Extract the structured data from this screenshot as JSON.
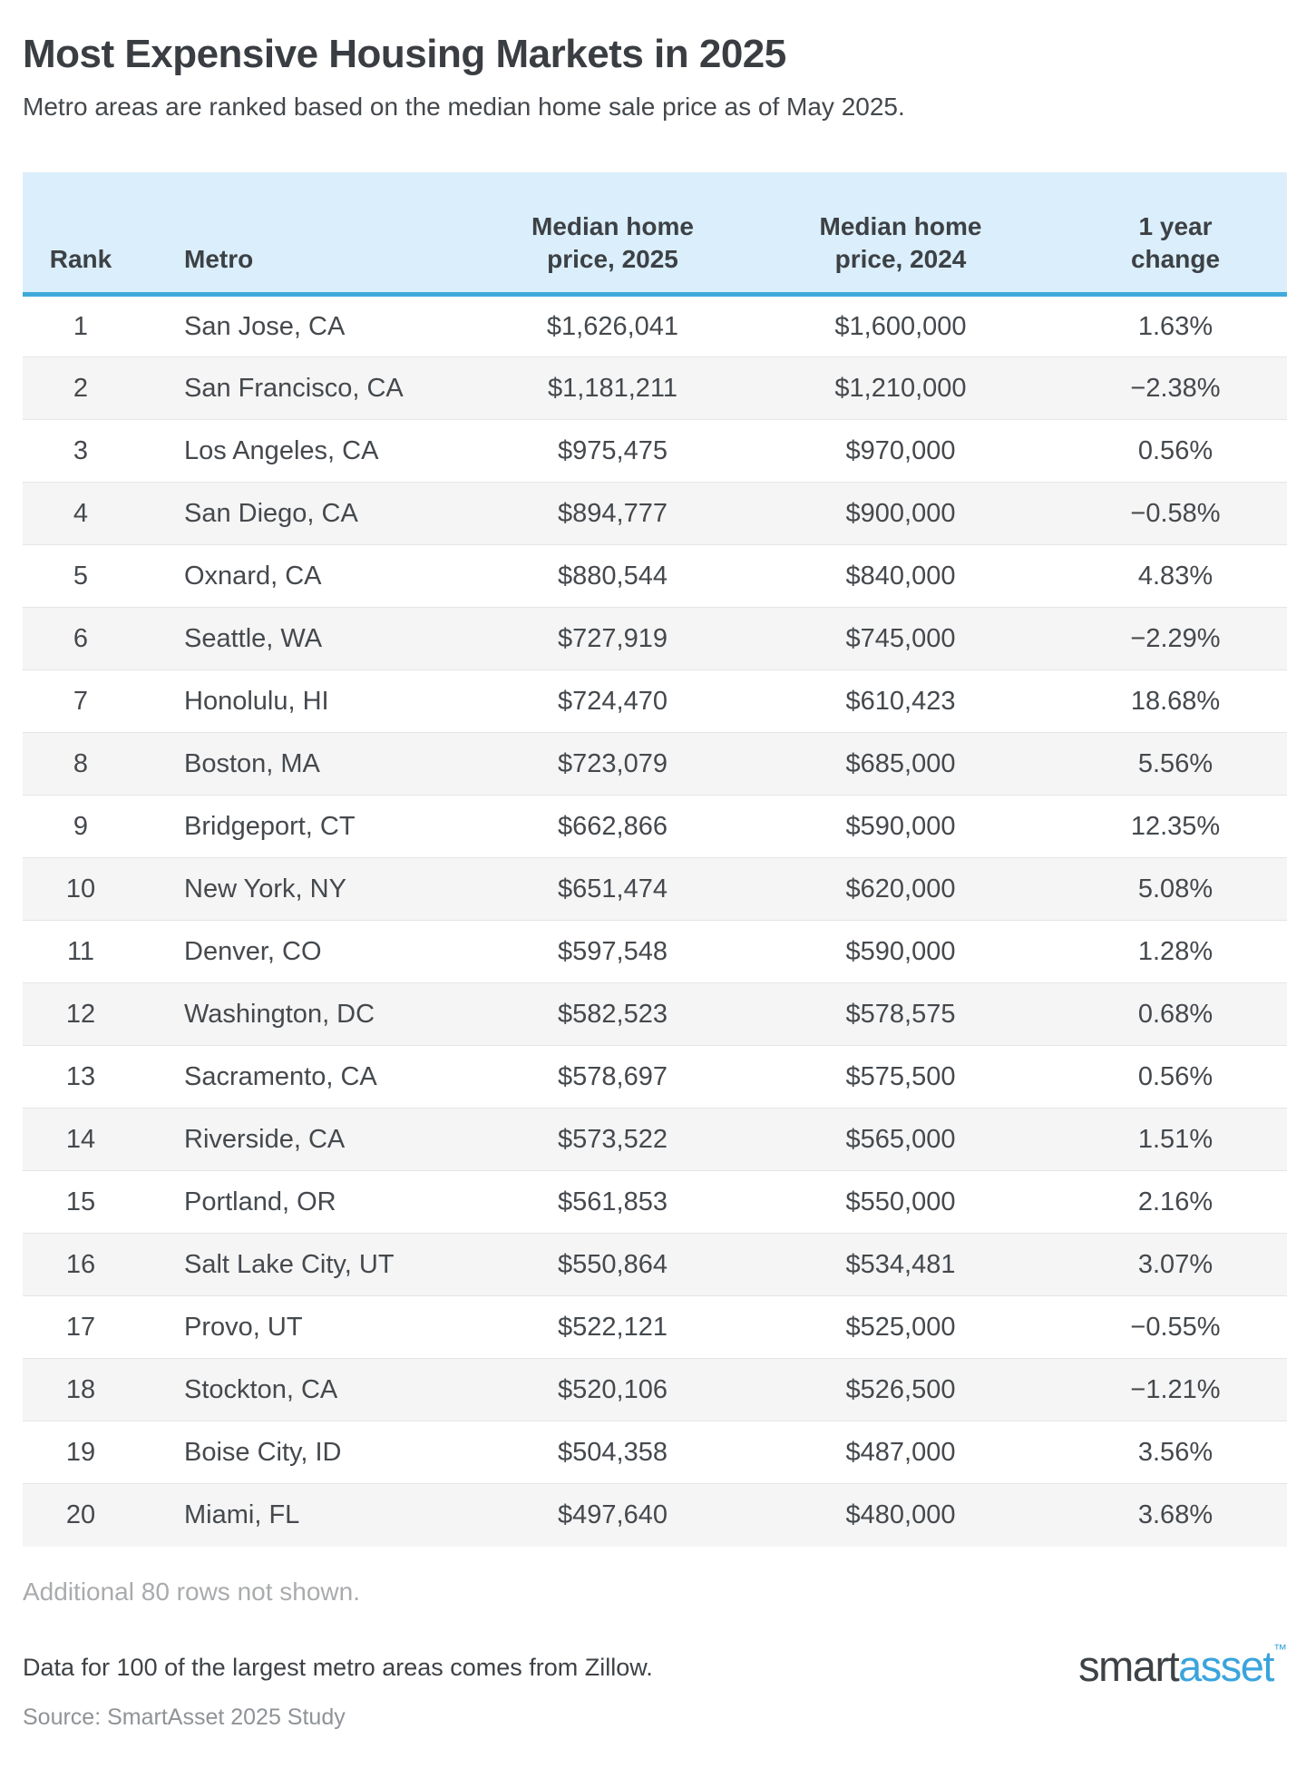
{
  "page": {
    "title": "Most Expensive Housing Markets in 2025",
    "subtitle": "Metro areas are ranked based on the median home sale price as of May 2025."
  },
  "table": {
    "columns": [
      {
        "key": "rank",
        "label": "Rank"
      },
      {
        "key": "metro",
        "label": "Metro"
      },
      {
        "key": "price2025",
        "label": "Median home\nprice, 2025"
      },
      {
        "key": "price2024",
        "label": "Median home\nprice, 2024"
      },
      {
        "key": "change",
        "label": "1 year\nchange"
      }
    ],
    "rows": [
      {
        "rank": "1",
        "metro": "San Jose, CA",
        "price2025": "$1,626,041",
        "price2024": "$1,600,000",
        "change": "1.63%"
      },
      {
        "rank": "2",
        "metro": "San Francisco, CA",
        "price2025": "$1,181,211",
        "price2024": "$1,210,000",
        "change": "−2.38%"
      },
      {
        "rank": "3",
        "metro": "Los Angeles, CA",
        "price2025": "$975,475",
        "price2024": "$970,000",
        "change": "0.56%"
      },
      {
        "rank": "4",
        "metro": "San Diego, CA",
        "price2025": "$894,777",
        "price2024": "$900,000",
        "change": "−0.58%"
      },
      {
        "rank": "5",
        "metro": "Oxnard, CA",
        "price2025": "$880,544",
        "price2024": "$840,000",
        "change": "4.83%"
      },
      {
        "rank": "6",
        "metro": "Seattle, WA",
        "price2025": "$727,919",
        "price2024": "$745,000",
        "change": "−2.29%"
      },
      {
        "rank": "7",
        "metro": "Honolulu, HI",
        "price2025": "$724,470",
        "price2024": "$610,423",
        "change": "18.68%"
      },
      {
        "rank": "8",
        "metro": "Boston, MA",
        "price2025": "$723,079",
        "price2024": "$685,000",
        "change": "5.56%"
      },
      {
        "rank": "9",
        "metro": "Bridgeport, CT",
        "price2025": "$662,866",
        "price2024": "$590,000",
        "change": "12.35%"
      },
      {
        "rank": "10",
        "metro": "New York, NY",
        "price2025": "$651,474",
        "price2024": "$620,000",
        "change": "5.08%"
      },
      {
        "rank": "11",
        "metro": "Denver, CO",
        "price2025": "$597,548",
        "price2024": "$590,000",
        "change": "1.28%"
      },
      {
        "rank": "12",
        "metro": "Washington, DC",
        "price2025": "$582,523",
        "price2024": "$578,575",
        "change": "0.68%"
      },
      {
        "rank": "13",
        "metro": "Sacramento, CA",
        "price2025": "$578,697",
        "price2024": "$575,500",
        "change": "0.56%"
      },
      {
        "rank": "14",
        "metro": "Riverside, CA",
        "price2025": "$573,522",
        "price2024": "$565,000",
        "change": "1.51%"
      },
      {
        "rank": "15",
        "metro": "Portland, OR",
        "price2025": "$561,853",
        "price2024": "$550,000",
        "change": "2.16%"
      },
      {
        "rank": "16",
        "metro": "Salt Lake City, UT",
        "price2025": "$550,864",
        "price2024": "$534,481",
        "change": "3.07%"
      },
      {
        "rank": "17",
        "metro": "Provo, UT",
        "price2025": "$522,121",
        "price2024": "$525,000",
        "change": "−0.55%"
      },
      {
        "rank": "18",
        "metro": "Stockton, CA",
        "price2025": "$520,106",
        "price2024": "$526,500",
        "change": "−1.21%"
      },
      {
        "rank": "19",
        "metro": "Boise City, ID",
        "price2025": "$504,358",
        "price2024": "$487,000",
        "change": "3.56%"
      },
      {
        "rank": "20",
        "metro": "Miami, FL",
        "price2025": "$497,640",
        "price2024": "$480,000",
        "change": "3.68%"
      }
    ]
  },
  "footer": {
    "additional_note": "Additional 80 rows not shown.",
    "data_note": "Data for 100 of the largest metro areas comes from Zillow.",
    "source_note": "Source: SmartAsset 2025 Study",
    "logo": {
      "part1": "smart",
      "part2": "asset",
      "tm": "™"
    }
  },
  "colors": {
    "header_bg": "#dbeefb",
    "accent_blue": "#3fa9da",
    "logo_blue": "#3aa4dc",
    "alt_row_bg": "#f5f5f5",
    "muted_text": "#a9abad",
    "source_text": "#8f9397",
    "dark_text": "#3a3e43"
  },
  "chart_data": {
    "type": "table",
    "title": "Most Expensive Housing Markets in 2025",
    "subtitle": "Metro areas are ranked based on the median home sale price as of May 2025.",
    "columns": [
      "Rank",
      "Metro",
      "Median home price, 2025",
      "Median home price, 2024",
      "1 year change (%)"
    ],
    "rows": [
      [
        1,
        "San Jose, CA",
        1626041,
        1600000,
        1.63
      ],
      [
        2,
        "San Francisco, CA",
        1181211,
        1210000,
        -2.38
      ],
      [
        3,
        "Los Angeles, CA",
        975475,
        970000,
        0.56
      ],
      [
        4,
        "San Diego, CA",
        894777,
        900000,
        -0.58
      ],
      [
        5,
        "Oxnard, CA",
        880544,
        840000,
        4.83
      ],
      [
        6,
        "Seattle, WA",
        727919,
        745000,
        -2.29
      ],
      [
        7,
        "Honolulu, HI",
        724470,
        610423,
        18.68
      ],
      [
        8,
        "Boston, MA",
        723079,
        685000,
        5.56
      ],
      [
        9,
        "Bridgeport, CT",
        662866,
        590000,
        12.35
      ],
      [
        10,
        "New York, NY",
        651474,
        620000,
        5.08
      ],
      [
        11,
        "Denver, CO",
        597548,
        590000,
        1.28
      ],
      [
        12,
        "Washington, DC",
        582523,
        578575,
        0.68
      ],
      [
        13,
        "Sacramento, CA",
        578697,
        575500,
        0.56
      ],
      [
        14,
        "Riverside, CA",
        573522,
        565000,
        1.51
      ],
      [
        15,
        "Portland, OR",
        561853,
        550000,
        2.16
      ],
      [
        16,
        "Salt Lake City, UT",
        550864,
        534481,
        3.07
      ],
      [
        17,
        "Provo, UT",
        522121,
        525000,
        -0.55
      ],
      [
        18,
        "Stockton, CA",
        520106,
        526500,
        -1.21
      ],
      [
        19,
        "Boise City, ID",
        504358,
        487000,
        3.56
      ],
      [
        20,
        "Miami, FL",
        497640,
        480000,
        3.68
      ]
    ],
    "notes": [
      "Additional 80 rows not shown.",
      "Data for 100 of the largest metro areas comes from Zillow.",
      "Source: SmartAsset 2025 Study"
    ]
  }
}
